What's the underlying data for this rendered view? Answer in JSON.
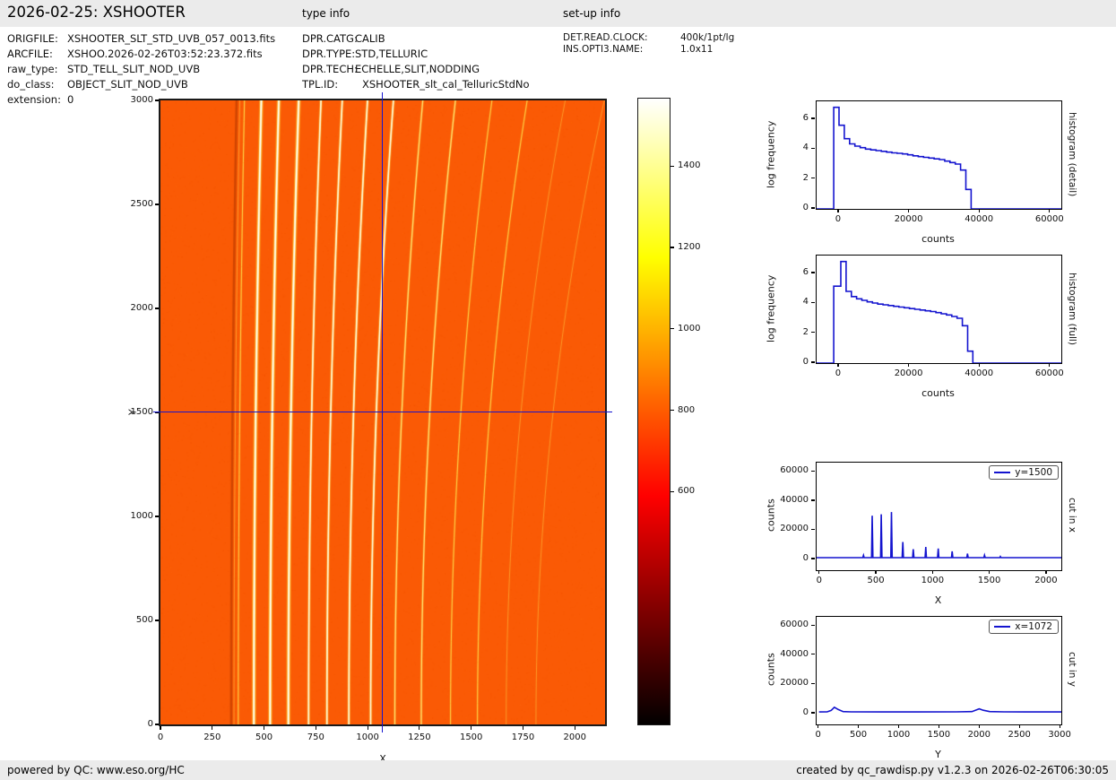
{
  "header": {
    "title": "2026-02-25: XSHOOTER",
    "type_info_heading": "type info",
    "setup_info_heading": "set-up info"
  },
  "file_info": {
    "rows": [
      {
        "label": "ORIGFILE:",
        "value": "XSHOOTER_SLT_STD_UVB_057_0013.fits"
      },
      {
        "label": "ARCFILE:",
        "value": "XSHOO.2026-02-26T03:52:23.372.fits"
      },
      {
        "label": "raw_type:",
        "value": "STD_TELL_SLIT_NOD_UVB"
      },
      {
        "label": "do_class:",
        "value": "OBJECT_SLIT_NOD_UVB"
      },
      {
        "label": "extension:",
        "value": "0"
      }
    ]
  },
  "type_info": {
    "rows": [
      {
        "label": "DPR.CATG:",
        "value": "CALIB"
      },
      {
        "label": "DPR.TYPE:",
        "value": "STD,TELLURIC"
      },
      {
        "label": "DPR.TECH:",
        "value": "ECHELLE,SLIT,NODDING"
      },
      {
        "label": "TPL.ID:",
        "value": "XSHOOTER_slt_cal_TelluricStdNo"
      }
    ]
  },
  "setup_info": {
    "rows": [
      {
        "label": "DET.READ.CLOCK:",
        "value": "400k/1pt/lg"
      },
      {
        "label": "INS.OPTI3.NAME:",
        "value": "1.0x11"
      }
    ]
  },
  "footer": {
    "left": "powered by QC: www.eso.org/HC",
    "right": "created by qc_rawdisp.py v1.2.3 on 2026-02-26T06:30:05"
  },
  "colors": {
    "accent_blue": "#1414cf",
    "bar_bg": "#ebebeb",
    "image_bg": "#fa5a05",
    "colormap": "hot"
  },
  "chart_data": [
    {
      "id": "main_image",
      "type": "heatmap",
      "xlabel": "X",
      "ylabel": "Y",
      "xlim": [
        0,
        2146
      ],
      "ylim": [
        0,
        3000
      ],
      "xticks": [
        0,
        250,
        500,
        750,
        1000,
        1250,
        1500,
        1750,
        2000
      ],
      "yticks": [
        0,
        500,
        1000,
        1500,
        2000,
        2500,
        3000
      ],
      "cursor": {
        "x": 1072,
        "y": 1500
      },
      "background_counts": 1000,
      "dark_band": {
        "x_mid": 348,
        "lean": 26
      },
      "orders": [
        {
          "x_mid": 362,
          "lean": 28,
          "peak": 1400
        },
        {
          "x_mid": 383,
          "lean": 30,
          "peak": 2800
        },
        {
          "x_mid": 460,
          "lean": 36,
          "peak": 30000
        },
        {
          "x_mid": 540,
          "lean": 42,
          "peak": 31000
        },
        {
          "x_mid": 630,
          "lean": 50,
          "peak": 32500
        },
        {
          "x_mid": 730,
          "lean": 60,
          "peak": 12000
        },
        {
          "x_mid": 822,
          "lean": 74,
          "peak": 7000
        },
        {
          "x_mid": 932,
          "lean": 90,
          "peak": 8500
        },
        {
          "x_mid": 1042,
          "lean": 110,
          "peak": 7500
        },
        {
          "x_mid": 1165,
          "lean": 135,
          "peak": 5500
        },
        {
          "x_mid": 1300,
          "lean": 165,
          "peak": 4000
        },
        {
          "x_mid": 1450,
          "lean": 200,
          "peak": 2900
        },
        {
          "x_mid": 1590,
          "lean": 240,
          "peak": 2000
        },
        {
          "x_mid": 1740,
          "lean": 285,
          "peak": 1500
        },
        {
          "x_mid": 1895,
          "lean": 330,
          "peak": 1300
        }
      ]
    },
    {
      "id": "colorbar",
      "type": "colorbar",
      "colormap": "hot",
      "ticks": [
        600,
        800,
        1000,
        1200,
        1400
      ],
      "value_range": [
        30,
        1566
      ]
    },
    {
      "id": "histogram_detail",
      "type": "line",
      "right_label": "histogram (detail)",
      "xlabel": "counts",
      "ylabel": "log frequency",
      "xlim": [
        -6360,
        63100
      ],
      "ylim": [
        0,
        7.2
      ],
      "xticks": [
        0,
        20000,
        40000,
        60000
      ],
      "yticks": [
        0,
        2,
        4,
        6
      ],
      "step_edges": [
        -1500,
        0,
        1500,
        3000,
        4500,
        6000,
        7500,
        9000,
        10500,
        12000,
        13500,
        15000,
        16500,
        18000,
        19500,
        21000,
        22500,
        24000,
        25500,
        27000,
        28500,
        30000,
        31500,
        33000,
        34500,
        36000,
        37500
      ],
      "step_values": [
        6.8,
        5.6,
        4.7,
        4.35,
        4.2,
        4.1,
        4.0,
        3.95,
        3.9,
        3.85,
        3.8,
        3.75,
        3.72,
        3.68,
        3.62,
        3.55,
        3.5,
        3.45,
        3.4,
        3.35,
        3.3,
        3.2,
        3.1,
        3.0,
        2.6,
        1.3
      ]
    },
    {
      "id": "histogram_full",
      "type": "line",
      "right_label": "histogram (full)",
      "xlabel": "counts",
      "ylabel": "log frequency",
      "xlim": [
        -6360,
        63100
      ],
      "ylim": [
        0,
        7.2
      ],
      "xticks": [
        0,
        20000,
        40000,
        60000
      ],
      "yticks": [
        0,
        2,
        4,
        6
      ],
      "step_edges": [
        -1500,
        500,
        2000,
        3500,
        5000,
        6500,
        8000,
        9500,
        11000,
        12500,
        14000,
        15500,
        17000,
        18500,
        20000,
        21500,
        23000,
        24500,
        26000,
        27500,
        29000,
        30500,
        32000,
        33500,
        35000,
        36500,
        38000
      ],
      "step_values": [
        5.15,
        6.8,
        4.8,
        4.45,
        4.3,
        4.2,
        4.1,
        4.02,
        3.95,
        3.9,
        3.85,
        3.8,
        3.75,
        3.7,
        3.65,
        3.6,
        3.55,
        3.5,
        3.45,
        3.38,
        3.3,
        3.22,
        3.12,
        3.0,
        2.5,
        0.8
      ]
    },
    {
      "id": "cut_in_x",
      "type": "line",
      "legend": "y=1500",
      "right_label": "cut in x",
      "xlabel": "X",
      "ylabel": "counts",
      "xlim": [
        -30,
        2127
      ],
      "ylim": [
        -7400,
        66400
      ],
      "xticks": [
        0,
        500,
        1000,
        1500,
        2000
      ],
      "yticks": [
        0,
        20000,
        40000,
        60000
      ],
      "baseline": 1200,
      "peaks": [
        [
          383,
          2800
        ],
        [
          460,
          30000
        ],
        [
          540,
          31000
        ],
        [
          630,
          32500
        ],
        [
          730,
          12000
        ],
        [
          822,
          7000
        ],
        [
          932,
          8500
        ],
        [
          1042,
          7500
        ],
        [
          1165,
          5500
        ],
        [
          1300,
          4000
        ],
        [
          1450,
          2900
        ],
        [
          1590,
          2000
        ]
      ]
    },
    {
      "id": "cut_in_y",
      "type": "line",
      "legend": "x=1072",
      "right_label": "cut in y",
      "xlabel": "Y",
      "ylabel": "counts",
      "xlim": [
        -30,
        3010
      ],
      "ylim": [
        -7400,
        66300
      ],
      "xticks": [
        0,
        500,
        1000,
        1500,
        2000,
        2500,
        3000
      ],
      "yticks": [
        0,
        20000,
        40000,
        60000
      ],
      "baseline": 1100,
      "points": [
        [
          0,
          1150
        ],
        [
          100,
          1200
        ],
        [
          150,
          2200
        ],
        [
          190,
          4300
        ],
        [
          240,
          2800
        ],
        [
          300,
          1400
        ],
        [
          400,
          1200
        ],
        [
          800,
          1150
        ],
        [
          1200,
          1150
        ],
        [
          1700,
          1200
        ],
        [
          1900,
          1400
        ],
        [
          1950,
          2400
        ],
        [
          1990,
          3300
        ],
        [
          2040,
          2300
        ],
        [
          2120,
          1400
        ],
        [
          2300,
          1200
        ],
        [
          3010,
          1150
        ]
      ]
    }
  ]
}
